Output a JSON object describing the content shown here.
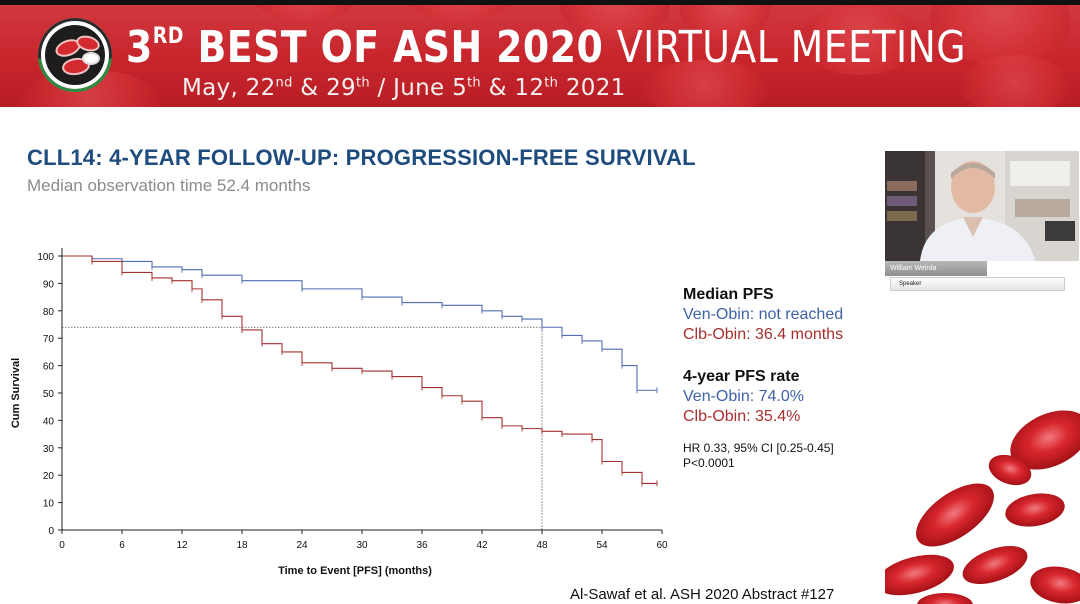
{
  "banner": {
    "title_num": "3",
    "title_sup": "RD",
    "title_bold": "BEST OF ASH 2020",
    "title_thin": "VIRTUAL MEETING",
    "dates": [
      {
        "text": "May, 22",
        "sup": "nd"
      },
      {
        "text": " & 29",
        "sup": "th"
      },
      {
        "text": " / June 5",
        "sup": "th"
      },
      {
        "text": " & 12",
        "sup": "th"
      },
      {
        "text": " 2021",
        "sup": ""
      }
    ]
  },
  "slide": {
    "title": "CLL14:  4-YEAR FOLLOW-UP: PROGRESSION-FREE SURVIVAL",
    "subtitle": "Median observation time 52.4 months",
    "citation": "Al-Sawaf et al. ASH 2020 Abstract #127"
  },
  "side_panel": {
    "median_heading": "Median PFS",
    "median_ven": "Ven-Obin: not reached",
    "median_clb": "Clb-Obin: 36.4 months",
    "rate_heading": "4-year PFS rate",
    "rate_ven": "Ven-Obin: 74.0%",
    "rate_clb": "Clb-Obin: 35.4%",
    "stats_line1": "HR 0.33, 95% CI [0.25-0.45]",
    "stats_line2": "P<0.0001"
  },
  "speaker": {
    "name": "William Weirda",
    "role": "Speaker"
  },
  "colors": {
    "ven": "#4f6db3",
    "clb": "#a3302d",
    "title_blue": "#1e4c7e",
    "banner_red": "#c8252c"
  },
  "chart_data": {
    "type": "line",
    "step": true,
    "xlabel": "Time to Event [PFS] (months)",
    "ylabel": "Cum Survival",
    "xlim": [
      0,
      60
    ],
    "ylim": [
      0,
      100
    ],
    "xticks": [
      0,
      6,
      12,
      18,
      24,
      30,
      36,
      42,
      48,
      54,
      60
    ],
    "yticks": [
      0,
      10,
      20,
      30,
      40,
      50,
      60,
      70,
      80,
      90,
      100
    ],
    "reference_lines": [
      {
        "x": 48,
        "y": 74.0
      }
    ],
    "series": [
      {
        "key": "ven",
        "x": [
          0,
          3,
          6,
          9,
          12,
          14,
          18,
          24,
          30,
          34,
          38,
          42,
          44,
          46,
          48,
          50,
          52,
          54,
          56,
          57.5,
          59.5
        ],
        "y": [
          100,
          99,
          98,
          96,
          95,
          93,
          91,
          88,
          85,
          83,
          82,
          80,
          78,
          77,
          74,
          71,
          69,
          66,
          60,
          51,
          51
        ]
      },
      {
        "key": "clb",
        "x": [
          0,
          3,
          6,
          9,
          11,
          13,
          14,
          16,
          18,
          20,
          22,
          24,
          27,
          30,
          33,
          36,
          38,
          40,
          42,
          44,
          46,
          48,
          50,
          53,
          54,
          56,
          58,
          59.5
        ],
        "y": [
          100,
          98,
          94,
          92,
          91,
          88,
          84,
          78,
          73,
          68,
          65,
          61,
          59,
          58,
          56,
          52,
          49,
          47,
          41,
          38,
          37,
          36,
          35,
          33,
          25,
          21,
          17,
          17
        ]
      }
    ]
  }
}
